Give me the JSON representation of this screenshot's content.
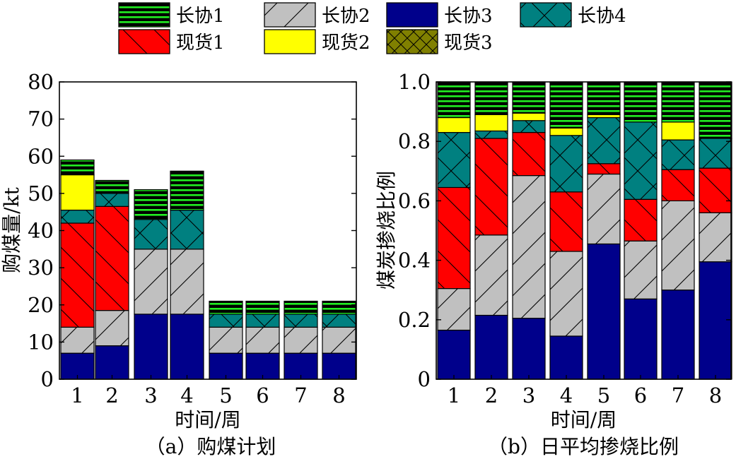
{
  "legend": [
    {
      "name": "长协1",
      "pattern": "lc1"
    },
    {
      "name": "长协2",
      "pattern": "lc2"
    },
    {
      "name": "长协3",
      "pattern": "lc3"
    },
    {
      "name": "长协4",
      "pattern": "lc4"
    },
    {
      "name": "现货1",
      "pattern": "xh1"
    },
    {
      "name": "现货2",
      "pattern": "xh2"
    },
    {
      "name": "现货3",
      "pattern": "xh3"
    }
  ],
  "colors": {
    "lc1_bg": "#000000",
    "lc1_line": "#22ee22",
    "lc2": "#c0c0c0",
    "lc3": "#00008b",
    "lc4": "#008080",
    "xh1": "#ff0000",
    "xh2": "#ffff00",
    "xh3": "#808000"
  },
  "chart_data": [
    {
      "type": "bar",
      "stacked": true,
      "caption": "（a）购煤计划",
      "xlabel": "时间/周",
      "ylabel": "购煤量/kt",
      "categories": [
        "1",
        "2",
        "3",
        "4",
        "5",
        "6",
        "7",
        "8"
      ],
      "ylim": [
        0,
        80
      ],
      "yticks": [
        0,
        10,
        20,
        30,
        40,
        50,
        60,
        70,
        80
      ],
      "yticklabels": [
        "0",
        "10",
        "20",
        "30",
        "40",
        "50",
        "60",
        "70",
        "80"
      ],
      "series": [
        {
          "name": "长协3",
          "values": [
            7,
            9,
            17.5,
            17.5,
            7,
            7,
            7,
            7
          ]
        },
        {
          "name": "长协2",
          "values": [
            7,
            9.5,
            17.5,
            17.5,
            7,
            7,
            7,
            7
          ]
        },
        {
          "name": "现货1",
          "values": [
            28,
            28,
            0,
            0,
            0,
            0,
            0,
            0
          ]
        },
        {
          "name": "长协4",
          "values": [
            3.5,
            3.5,
            8,
            10.5,
            3.5,
            3.5,
            3.5,
            3.5
          ]
        },
        {
          "name": "现货2",
          "values": [
            9.5,
            0,
            0,
            0,
            0,
            0,
            0,
            0
          ]
        },
        {
          "name": "现货3",
          "values": [
            0,
            0,
            0,
            0,
            0,
            0,
            0,
            0
          ]
        },
        {
          "name": "长协1",
          "values": [
            4,
            3.5,
            8,
            10.5,
            3.5,
            3.5,
            3.5,
            3.5
          ]
        }
      ]
    },
    {
      "type": "bar",
      "stacked": true,
      "caption": "（b）日平均掺烧比例",
      "xlabel": "时间/周",
      "ylabel": "煤炭掺烧比例",
      "categories": [
        "1",
        "2",
        "3",
        "4",
        "5",
        "6",
        "7",
        "8"
      ],
      "ylim": [
        0,
        1
      ],
      "yticks": [
        0,
        0.2,
        0.4,
        0.6,
        0.8,
        1.0
      ],
      "yticklabels": [
        "0",
        "0.2",
        "0.4",
        "0.6",
        "0.8",
        "1.0"
      ],
      "series": [
        {
          "name": "长协3",
          "values": [
            0.165,
            0.215,
            0.205,
            0.145,
            0.455,
            0.27,
            0.3,
            0.395
          ]
        },
        {
          "name": "长协2",
          "values": [
            0.14,
            0.27,
            0.48,
            0.285,
            0.235,
            0.195,
            0.3,
            0.165
          ]
        },
        {
          "name": "现货1",
          "values": [
            0.34,
            0.325,
            0.145,
            0.2,
            0.035,
            0.14,
            0.105,
            0.15
          ]
        },
        {
          "name": "长协4",
          "values": [
            0.185,
            0.025,
            0.04,
            0.19,
            0.155,
            0.26,
            0.1,
            0.1
          ]
        },
        {
          "name": "现货2",
          "values": [
            0.05,
            0.055,
            0.025,
            0.025,
            0.01,
            0,
            0.06,
            0
          ]
        },
        {
          "name": "现货3",
          "values": [
            0,
            0,
            0,
            0,
            0,
            0,
            0,
            0
          ]
        },
        {
          "name": "长协1",
          "values": [
            0.12,
            0.11,
            0.105,
            0.155,
            0.11,
            0.135,
            0.135,
            0.19
          ]
        }
      ]
    }
  ]
}
